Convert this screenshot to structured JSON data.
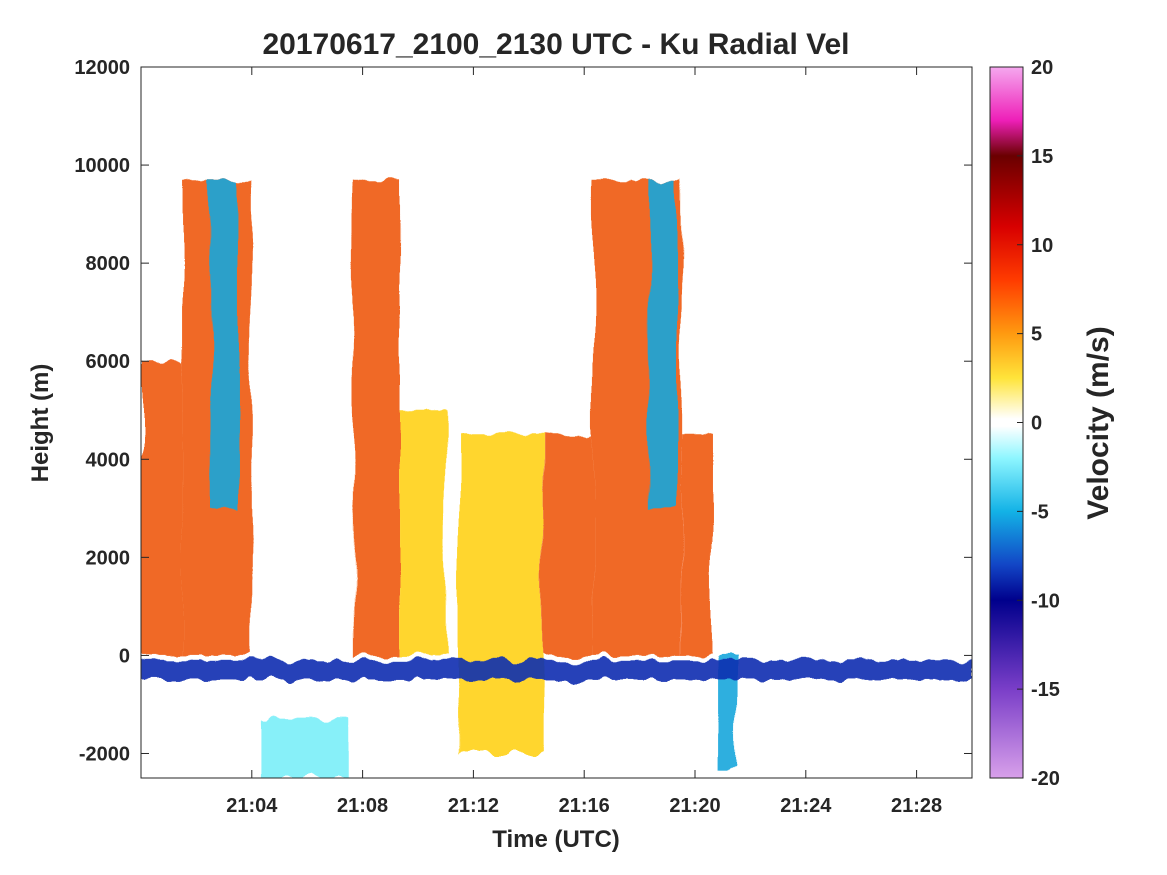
{
  "chart_data": {
    "type": "heatmap",
    "title": "20170617_2100_2130 UTC - Ku Radial Vel",
    "xlabel": "Time (UTC)",
    "ylabel": "Height (m)",
    "xlim": [
      "21:00",
      "21:30"
    ],
    "ylim": [
      -2500,
      12000
    ],
    "x_ticks": [
      "21:04",
      "21:08",
      "21:12",
      "21:16",
      "21:20",
      "21:24",
      "21:28"
    ],
    "y_ticks": [
      -2000,
      0,
      2000,
      4000,
      6000,
      8000,
      10000,
      12000
    ],
    "grid": false,
    "colorbar": {
      "label": "Velocity (m/s)",
      "range": [
        -20,
        20
      ],
      "ticks": [
        20,
        15,
        10,
        5,
        0,
        -5,
        -10,
        -15,
        -20
      ]
    },
    "colors": {
      "strong_positive": "#b00000",
      "positive": "#ee5a10",
      "weak_positive": "#ffd21a",
      "near_zero": "#ffffff",
      "weak_negative": "#7aeef8",
      "negative": "#1aa6dc",
      "strong_negative": "#0a2fb0"
    },
    "regions": [
      {
        "x": [
          "21:00",
          "21:01:30"
        ],
        "y": [
          0,
          6000
        ],
        "velocity": 6
      },
      {
        "x": [
          "21:01:30",
          "21:04"
        ],
        "y": [
          0,
          9700
        ],
        "velocity": 5
      },
      {
        "x": [
          "21:02:30",
          "21:03:30"
        ],
        "y": [
          3000,
          9700
        ],
        "velocity": -4
      },
      {
        "x": [
          "21:04:10",
          "21:07:30"
        ],
        "y": [
          -2500,
          -1300
        ],
        "velocity": -2
      },
      {
        "x": [
          "21:07:40",
          "21:09:20"
        ],
        "y": [
          0,
          9700
        ],
        "velocity": 6
      },
      {
        "x": [
          "21:09:20",
          "21:11"
        ],
        "y": [
          0,
          5000
        ],
        "velocity": 3
      },
      {
        "x": [
          "21:11:30",
          "21:14:30"
        ],
        "y": [
          -2000,
          4500
        ],
        "velocity": 2
      },
      {
        "x": [
          "21:14:30",
          "21:16:20"
        ],
        "y": [
          0,
          4500
        ],
        "velocity": 7
      },
      {
        "x": [
          "21:16:20",
          "21:19:30"
        ],
        "y": [
          0,
          9700
        ],
        "velocity": 6
      },
      {
        "x": [
          "21:18:20",
          "21:19:20"
        ],
        "y": [
          3000,
          9700
        ],
        "velocity": -5
      },
      {
        "x": [
          "21:19:30",
          "21:20:40"
        ],
        "y": [
          0,
          4500
        ],
        "velocity": 6
      },
      {
        "x": [
          "21:20:50",
          "21:21:30"
        ],
        "y": [
          -2300,
          0
        ],
        "velocity": -3
      },
      {
        "x": [
          "21:00",
          "21:30"
        ],
        "y": [
          -500,
          -100
        ],
        "velocity": -7
      }
    ]
  }
}
